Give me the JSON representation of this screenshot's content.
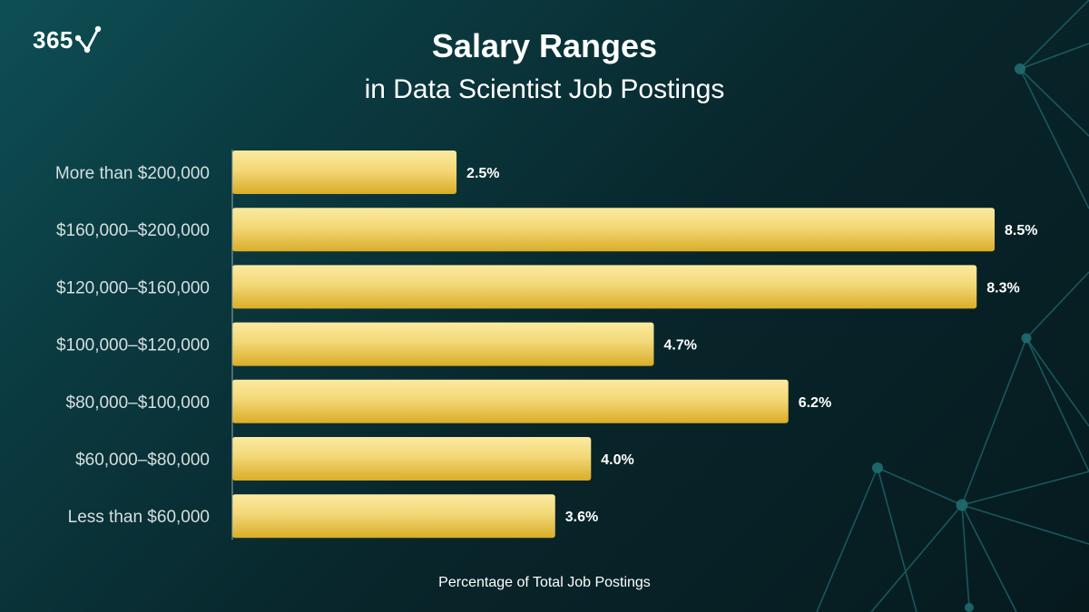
{
  "brand": {
    "logo_text": "365"
  },
  "colors": {
    "bar_top": "#fbeaa0",
    "bar_bottom": "#d9ad27",
    "axis": "#9aa6a8"
  },
  "chart_data": {
    "type": "bar",
    "orientation": "horizontal",
    "title": "Salary Ranges",
    "subtitle": "in Data Scientist Job Postings",
    "xlabel": "Percentage of Total Job Postings",
    "ylabel": "",
    "categories": [
      "More than $200,000",
      "$160,000–$200,000",
      "$120,000–$160,000",
      "$100,000–$120,000",
      "$80,000–$100,000",
      "$60,000–$80,000",
      "Less than $60,000"
    ],
    "values": [
      2.5,
      8.5,
      8.3,
      4.7,
      6.2,
      4.0,
      3.6
    ],
    "value_labels": [
      "2.5%",
      "8.5%",
      "8.3%",
      "4.7%",
      "6.2%",
      "4.0%",
      "3.6%"
    ],
    "xlim": [
      0,
      8.5
    ],
    "grid": false,
    "legend": "none"
  }
}
